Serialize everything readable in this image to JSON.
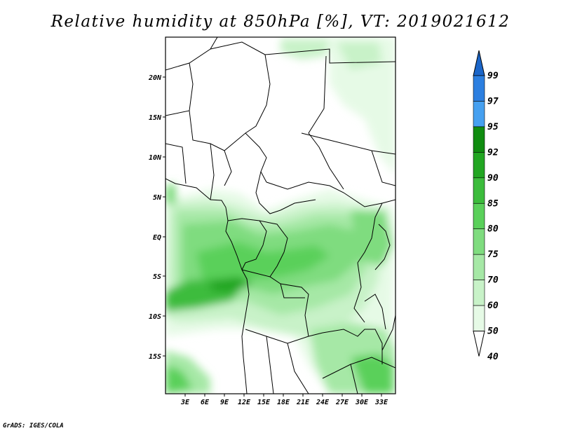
{
  "title": "Relative humidity at 850hPa [%], VT: 2019021612",
  "credit": "GrADS: IGES/COLA",
  "map": {
    "lat_labels": [
      "20N",
      "15N",
      "10N",
      "5N",
      "EQ",
      "5S",
      "10S",
      "15S"
    ],
    "lon_labels": [
      "3E",
      "6E",
      "9E",
      "12E",
      "15E",
      "18E",
      "21E",
      "24E",
      "27E",
      "30E",
      "33E"
    ],
    "lat_range": [
      -20,
      24.5
    ],
    "lon_range": [
      0.5,
      35
    ]
  },
  "colorbar": {
    "labels": [
      "99",
      "97",
      "95",
      "92",
      "90",
      "85",
      "80",
      "75",
      "70",
      "60",
      "50",
      "40"
    ],
    "colors": [
      "#1b66c9",
      "#2c7fe0",
      "#46a0f0",
      "#108c10",
      "#22a622",
      "#3cbc3c",
      "#5ad05a",
      "#7fdc7f",
      "#a6e8a6",
      "#c8f2c8",
      "#e6fae6",
      "#ffffff"
    ]
  }
}
